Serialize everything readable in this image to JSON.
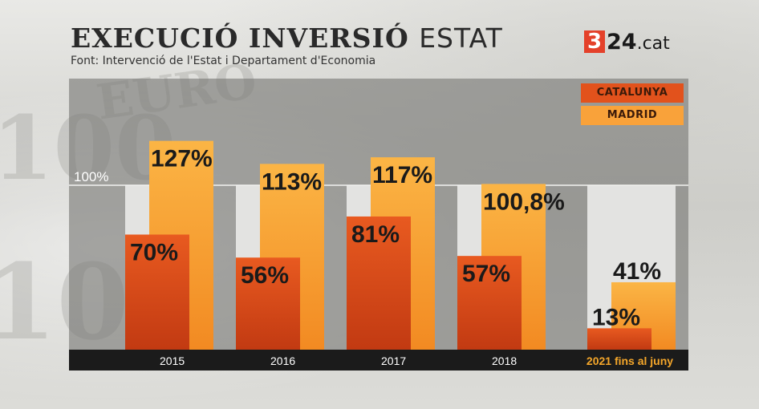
{
  "header": {
    "title_bold": "EXECUCIÓ INVERSIÓ",
    "title_light": "ESTAT",
    "subtitle": "Font: Intervenció de l'Estat i Departament d'Economia"
  },
  "logo": {
    "digit": "3",
    "text": "24",
    "suffix": ".cat"
  },
  "colors": {
    "catalunya": "#e2521c",
    "madrid": "#f9a23a",
    "reference_band": "#e3e3e1",
    "highlight_label": "#f4a62a"
  },
  "chart_data": {
    "type": "bar",
    "title": "EXECUCIÓ INVERSIÓ ESTAT",
    "categories": [
      "2015",
      "2016",
      "2017",
      "2018",
      "2021 fins al juny"
    ],
    "series": [
      {
        "name": "CATALUNYA",
        "values": [
          70,
          56,
          81,
          57,
          13
        ],
        "labels": [
          "70%",
          "56%",
          "81%",
          "57%",
          "13%"
        ]
      },
      {
        "name": "MADRID",
        "values": [
          127,
          113,
          117,
          100.8,
          41
        ],
        "labels": [
          "127%",
          "113%",
          "117%",
          "100,8%",
          "41%"
        ]
      }
    ],
    "reference_line": {
      "value": 100,
      "label": "100%"
    },
    "ylim": [
      0,
      150
    ],
    "grid": false,
    "legend_position": "top-right"
  }
}
